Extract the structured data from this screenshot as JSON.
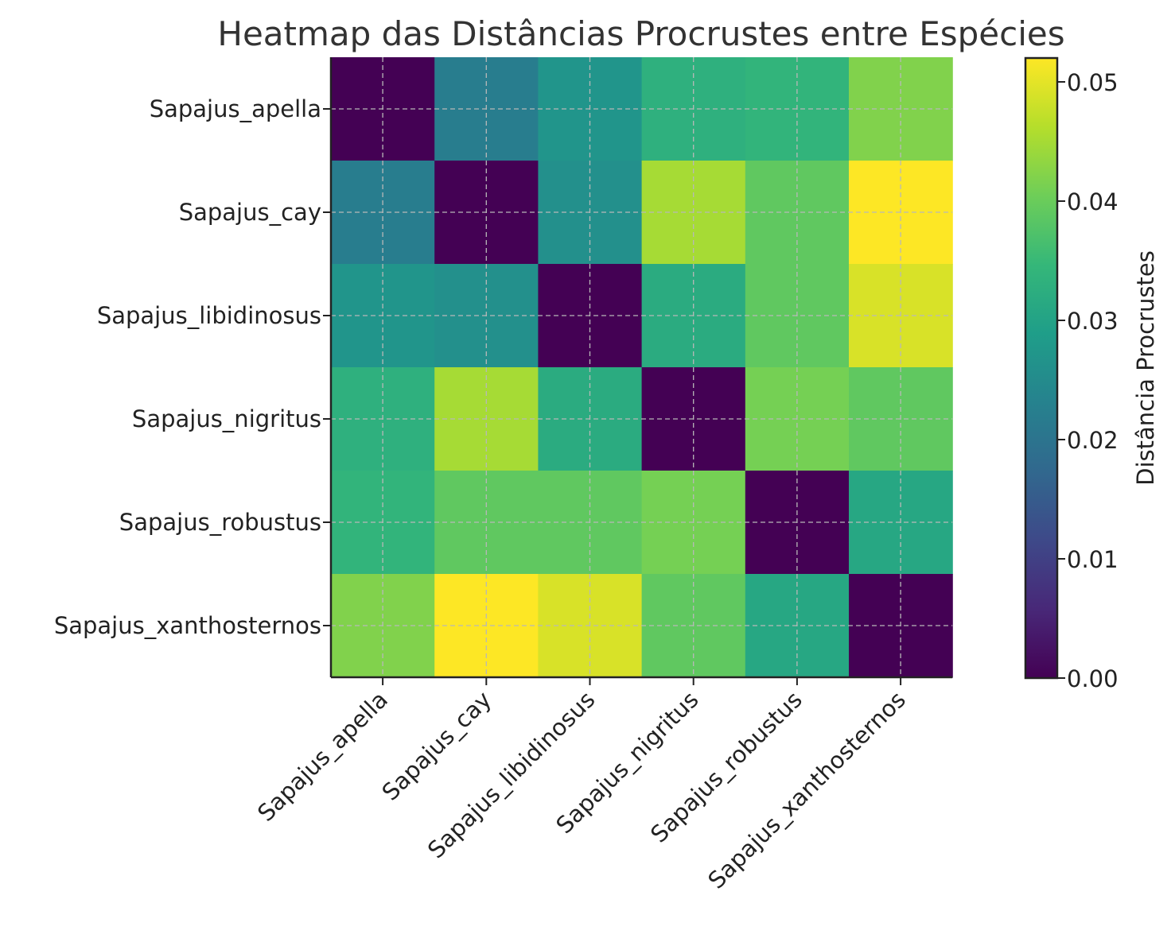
{
  "chart_data": {
    "type": "heatmap",
    "title": "Heatmap das Distâncias Procrustes entre Espécies",
    "rows": [
      "Sapajus_apella",
      "Sapajus_cay",
      "Sapajus_libidinosus",
      "Sapajus_nigritus",
      "Sapajus_robustus",
      "Sapajus_xanthosternos"
    ],
    "columns": [
      "Sapajus_apella",
      "Sapajus_cay",
      "Sapajus_libidinosus",
      "Sapajus_nigritus",
      "Sapajus_robustus",
      "Sapajus_xanthosternos"
    ],
    "values": [
      [
        0.0,
        0.022,
        0.027,
        0.033,
        0.034,
        0.042
      ],
      [
        0.022,
        0.0,
        0.026,
        0.045,
        0.039,
        0.052
      ],
      [
        0.027,
        0.026,
        0.0,
        0.032,
        0.039,
        0.049
      ],
      [
        0.033,
        0.045,
        0.032,
        0.0,
        0.041,
        0.039
      ],
      [
        0.034,
        0.039,
        0.039,
        0.041,
        0.0,
        0.031
      ],
      [
        0.042,
        0.052,
        0.049,
        0.039,
        0.031,
        0.0
      ]
    ],
    "colormap": "viridis",
    "colorbar": {
      "label": "Distância Procrustes",
      "range": [
        0.0,
        0.052
      ],
      "ticks": [
        "0.00",
        "0.01",
        "0.02",
        "0.03",
        "0.04",
        "0.05"
      ]
    },
    "grid": true
  }
}
